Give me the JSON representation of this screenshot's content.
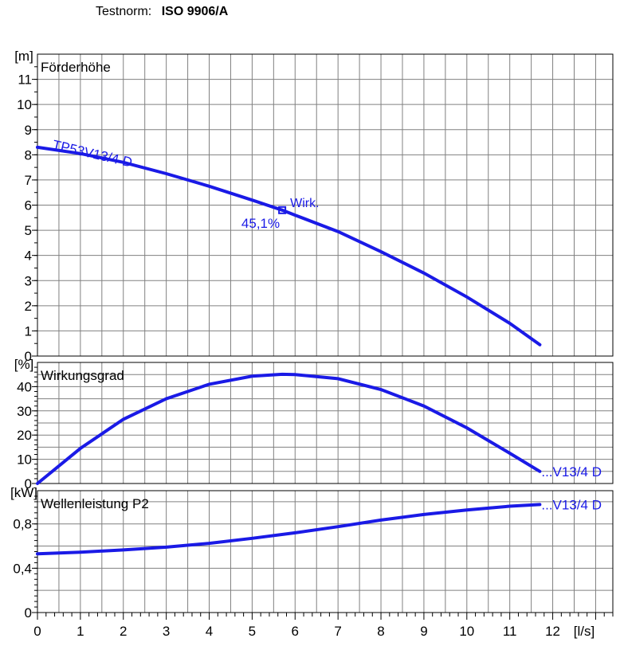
{
  "header": {
    "label": "Testnorm:",
    "value": "ISO 9906/A"
  },
  "colors": {
    "curve": "#1a1ae6",
    "grid": "#808080",
    "axis": "#000000"
  },
  "chart_data": [
    {
      "type": "line",
      "title": "Förderhöhe",
      "ylabel": "[m]",
      "xlabel": "[l/s]",
      "xlim": [
        0,
        13.4
      ],
      "ylim": [
        0,
        12
      ],
      "yticks": [
        0,
        1,
        2,
        3,
        4,
        5,
        6,
        7,
        8,
        9,
        10,
        11
      ],
      "series": [
        {
          "name": "TP53V13/4 D",
          "x": [
            0,
            1,
            2,
            3,
            4,
            5,
            5.7,
            6,
            7,
            8,
            9,
            10,
            11,
            11.7
          ],
          "y": [
            8.3,
            8.05,
            7.7,
            7.25,
            6.75,
            6.2,
            5.8,
            5.6,
            4.95,
            4.15,
            3.3,
            2.35,
            1.3,
            0.45
          ]
        }
      ],
      "annotations": [
        {
          "x": 5.7,
          "y": 5.8,
          "label": "Wirk.",
          "value": "45,1%"
        }
      ]
    },
    {
      "type": "line",
      "title": "Wirkungsgrad",
      "ylabel": "[%]",
      "xlim": [
        0,
        13.4
      ],
      "ylim": [
        0,
        50
      ],
      "yticks": [
        0,
        10,
        20,
        30,
        40
      ],
      "series": [
        {
          "name": "...V13/4 D",
          "x": [
            0,
            1,
            2,
            3,
            4,
            5,
            5.7,
            6,
            7,
            8,
            9,
            10,
            11,
            11.7
          ],
          "y": [
            0,
            14.5,
            26.5,
            35,
            41,
            44.3,
            45.1,
            45,
            43.3,
            38.8,
            32,
            23,
            12.5,
            5
          ]
        }
      ]
    },
    {
      "type": "line",
      "title": "Wellenleistung P2",
      "ylabel": "[kW]",
      "xlabel": "[l/s]",
      "xlim": [
        0,
        13.4
      ],
      "ylim": [
        0,
        1.1
      ],
      "yticks": [
        "0",
        "0,4",
        "0,8"
      ],
      "xticks": [
        0,
        1,
        2,
        3,
        4,
        5,
        6,
        7,
        8,
        9,
        10,
        11,
        12
      ],
      "series": [
        {
          "name": "...V13/4 D",
          "x": [
            0,
            1,
            2,
            3,
            4,
            5,
            6,
            7,
            8,
            9,
            10,
            11,
            11.7
          ],
          "y": [
            0.53,
            0.545,
            0.565,
            0.59,
            0.625,
            0.67,
            0.72,
            0.775,
            0.835,
            0.885,
            0.925,
            0.96,
            0.975
          ]
        }
      ]
    }
  ]
}
